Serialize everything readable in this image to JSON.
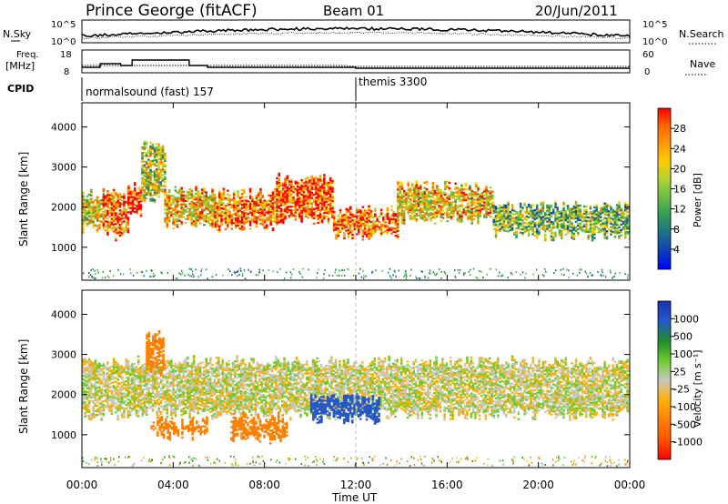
{
  "header": {
    "title": "Prince George (fitACF)",
    "beam": "Beam 01",
    "date": "20/Jun/2011"
  },
  "noise_panel": {
    "left_label": "N.Sky",
    "right_label": "N.Search",
    "left_ticks": [
      "10^5",
      "10^0"
    ],
    "right_ticks": [
      "10^5",
      "10^0"
    ]
  },
  "freq_panel": {
    "left_label_line1": "Freq.",
    "left_label_line2": "[MHz]",
    "right_label": "Nave",
    "left_ticks": [
      "18",
      "8"
    ],
    "right_ticks": [
      "60",
      "0"
    ]
  },
  "cpid": {
    "label": "CPID",
    "mode1": "normalsound (fast) 157",
    "mode2": "themis 3300"
  },
  "power_panel": {
    "ylabel": "Slant Range [km]",
    "colorbar_label": "Power [dB]",
    "colorbar_ticks": [
      "28",
      "24",
      "20",
      "16",
      "12",
      "8",
      "4"
    ],
    "colorbar_colors": [
      "#ff0000",
      "#ff6600",
      "#ff9900",
      "#ffcc00",
      "#aad435",
      "#6aba45",
      "#2e9c55",
      "#1f6e8a",
      "#0b3fb8",
      "#0000ff"
    ]
  },
  "velocity_panel": {
    "ylabel": "Slant Range [km]",
    "colorbar_label": "Velocity [m s⁻¹]",
    "colorbar_ticks": [
      "1000",
      "500",
      "100",
      "25",
      "-25",
      "-100",
      "-500",
      "-1000"
    ],
    "colorbar_colors": [
      "#1533b5",
      "#2558c8",
      "#1c8b2e",
      "#6dcc2b",
      "#c8c8c0",
      "#ffb000",
      "#ff8000",
      "#ff5500",
      "#ff0000"
    ]
  },
  "xaxis": {
    "label": "Time UT",
    "ticks": [
      "00:00",
      "04:00",
      "08:00",
      "12:00",
      "16:00",
      "20:00",
      "00:00"
    ]
  },
  "chart_data": {
    "type": "heatmap",
    "title": "Prince George (fitACF)",
    "subtitle": "Beam 01",
    "date": "20/Jun/2011",
    "x_units": "hours UT",
    "xlim": [
      0,
      24
    ],
    "ylim": [
      180,
      4600
    ],
    "ylabel": "Slant Range [km]",
    "xlabel": "Time UT",
    "y_ticks": [
      1000,
      2000,
      3000,
      4000
    ],
    "mode_change_hour": 12.0,
    "power_bands": [
      {
        "t": [
          0.0,
          0.9
        ],
        "r": [
          1500,
          2300
        ],
        "dB": 18
      },
      {
        "t": [
          0.9,
          2.0
        ],
        "r": [
          1300,
          2300
        ],
        "dB": 24
      },
      {
        "t": [
          2.0,
          2.6
        ],
        "r": [
          1900,
          2500
        ],
        "dB": 28
      },
      {
        "t": [
          2.6,
          3.6
        ],
        "r": [
          2200,
          3500
        ],
        "dB": 16
      },
      {
        "t": [
          3.6,
          5.8
        ],
        "r": [
          1600,
          2400
        ],
        "dB": 20
      },
      {
        "t": [
          5.8,
          8.5
        ],
        "r": [
          1500,
          2300
        ],
        "dB": 24
      },
      {
        "t": [
          8.5,
          11.0
        ],
        "r": [
          1700,
          2700
        ],
        "dB": 26
      },
      {
        "t": [
          11.0,
          13.8
        ],
        "r": [
          1300,
          1900
        ],
        "dB": 24
      },
      {
        "t": [
          13.8,
          18.0
        ],
        "r": [
          1700,
          2500
        ],
        "dB": 20
      },
      {
        "t": [
          18.0,
          24.0
        ],
        "r": [
          1300,
          2000
        ],
        "dB": 14
      }
    ],
    "velocity_bands": [
      {
        "t": [
          0.0,
          24.0
        ],
        "r": [
          1500,
          2800
        ],
        "v": 0
      },
      {
        "t": [
          3.0,
          5.5
        ],
        "r": [
          1000,
          1300
        ],
        "v": -300
      },
      {
        "t": [
          6.5,
          9.0
        ],
        "r": [
          900,
          1400
        ],
        "v": -400
      },
      {
        "t": [
          10.0,
          13.0
        ],
        "r": [
          1400,
          1900
        ],
        "v": 700
      },
      {
        "t": [
          2.8,
          3.6
        ],
        "r": [
          2600,
          3500
        ],
        "v": -300
      }
    ]
  }
}
